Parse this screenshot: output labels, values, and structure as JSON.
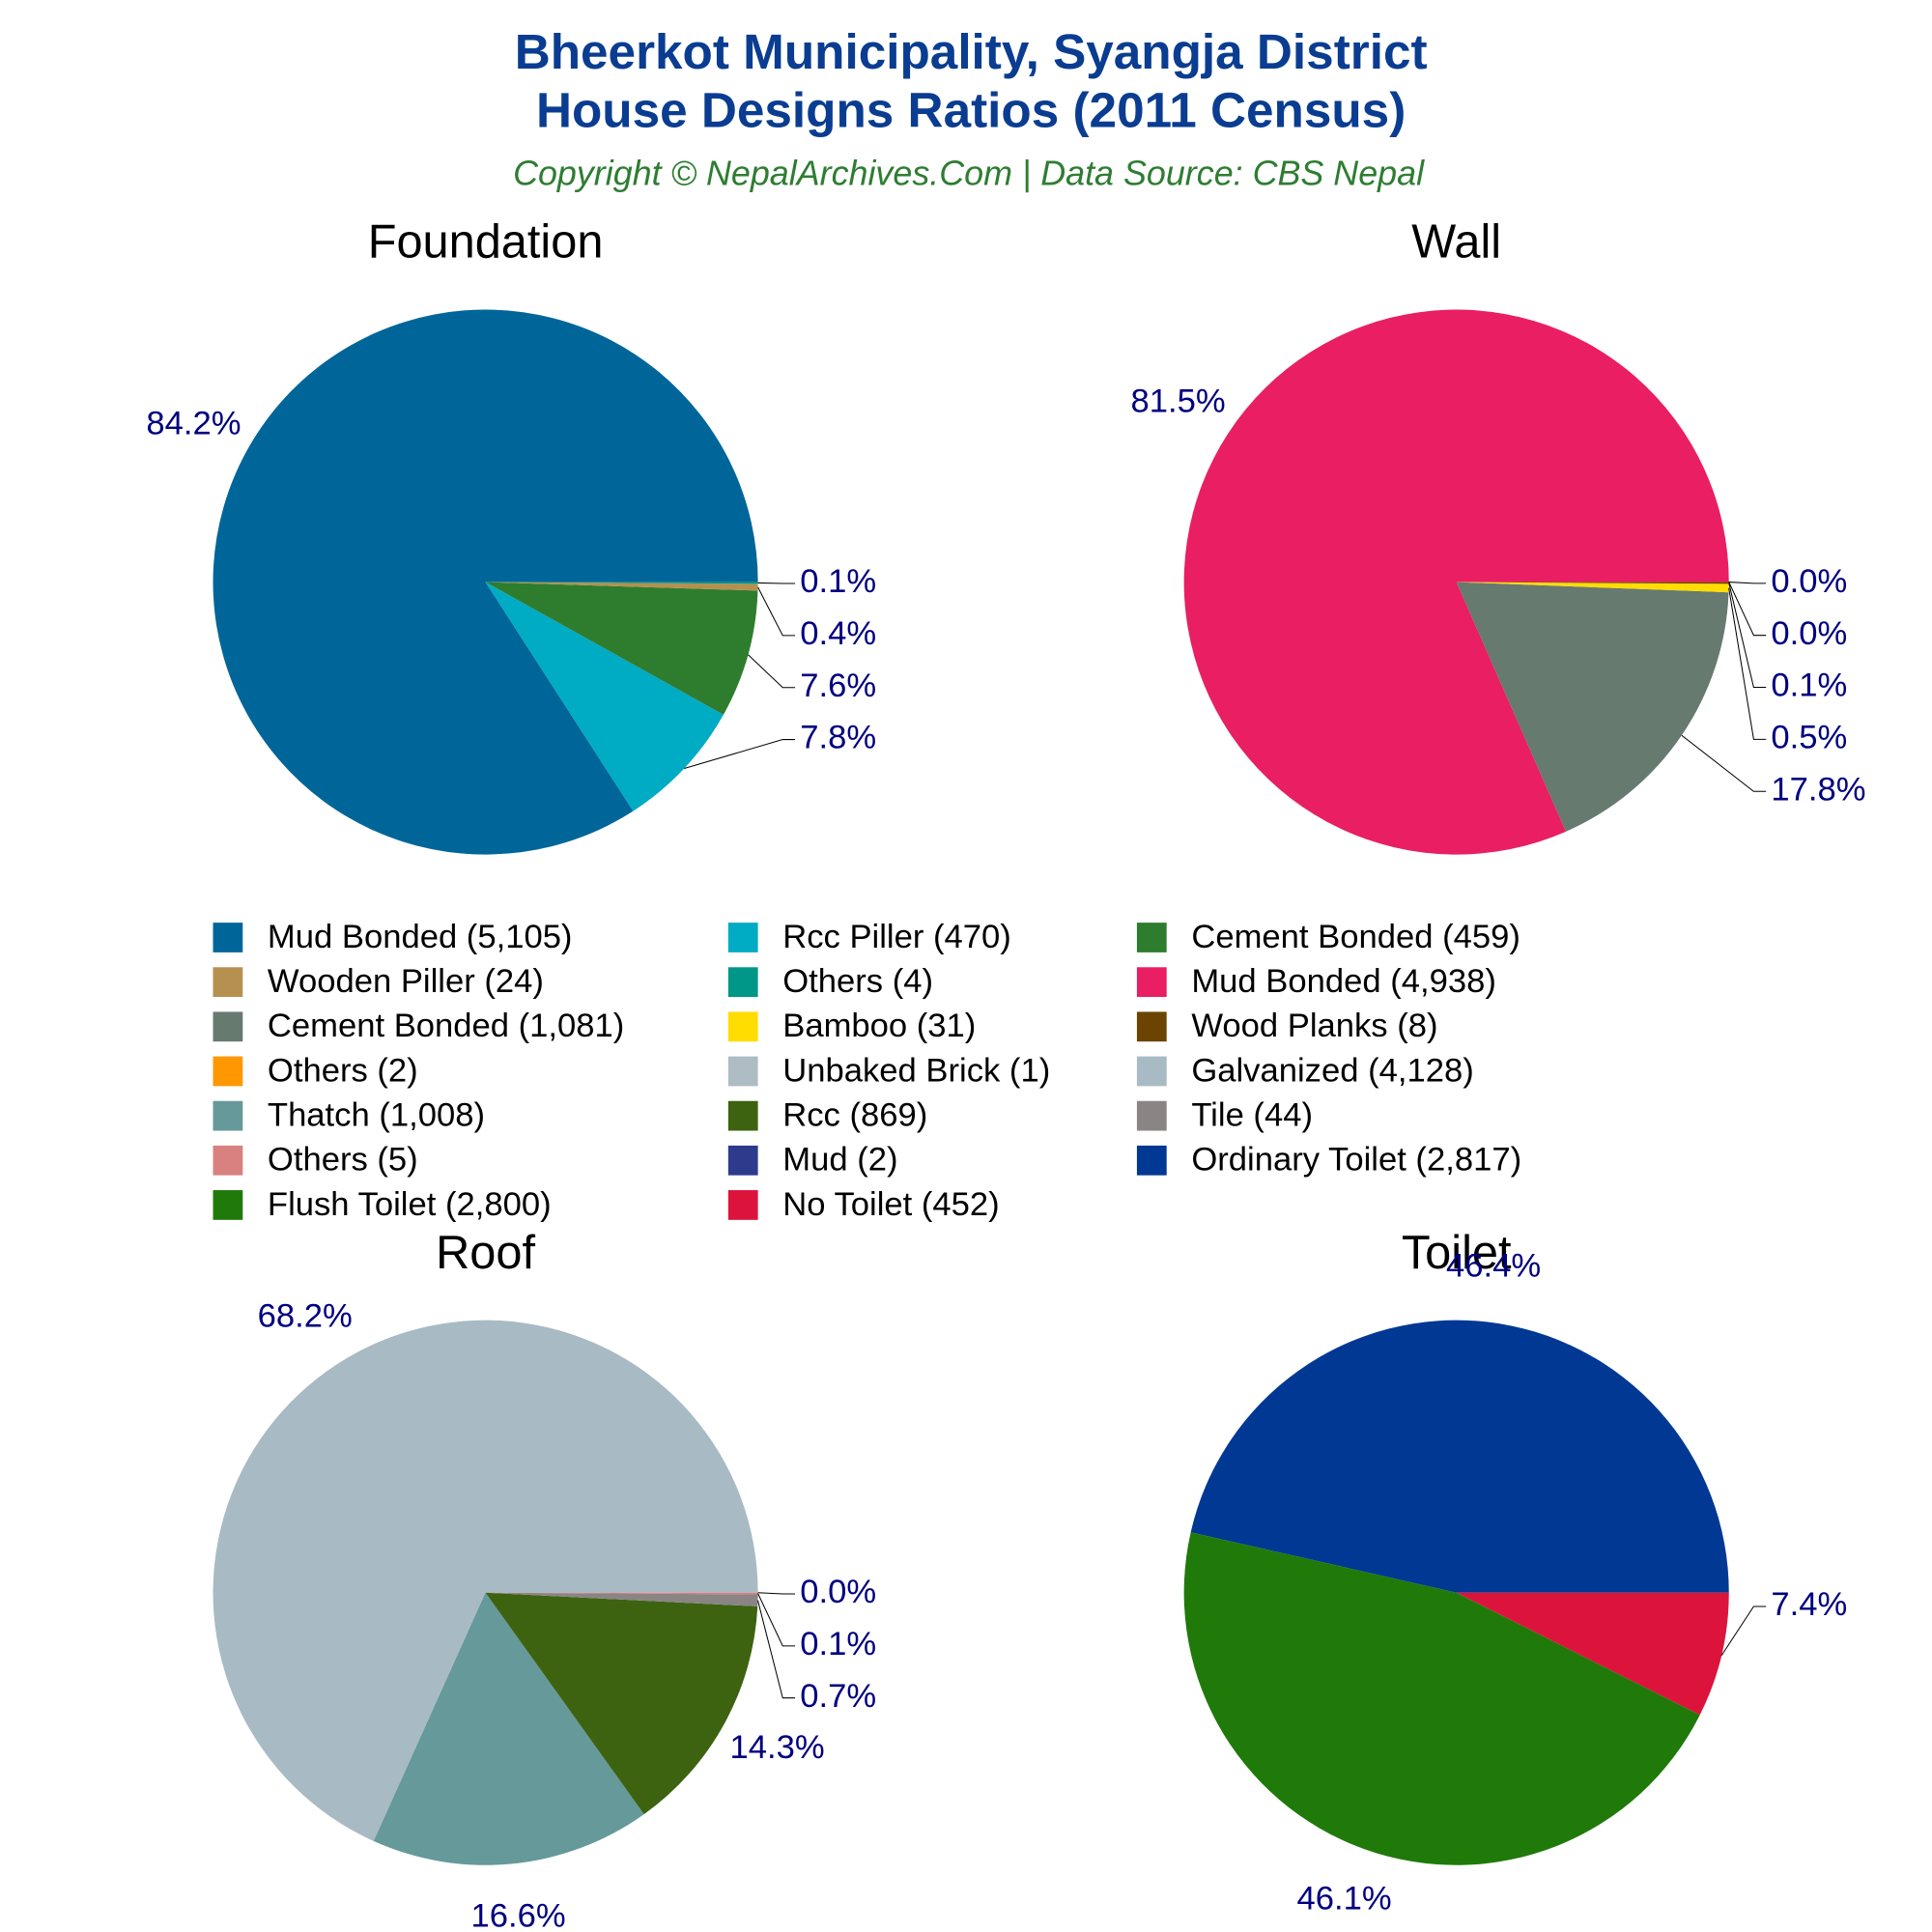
{
  "header": {
    "title": [
      "Bheerkot Municipality, Syangja District",
      "House Designs Ratios (2011 Census)"
    ],
    "subtitle": "Copyright © NepalArchives.Com | Data Source: CBS Nepal"
  },
  "chart_data": [
    {
      "type": "pie",
      "title": "Foundation",
      "categories": [
        "Mud Bonded (5,105)",
        "Rcc Piller (470)",
        "Cement Bonded (459)",
        "Wooden Piller (24)",
        "Others (4)"
      ],
      "values": [
        84.2,
        7.8,
        7.6,
        0.4,
        0.1
      ],
      "value_labels": [
        "84.2%",
        "7.8%",
        "7.6%",
        "0.4%",
        "0.1%"
      ],
      "colors": [
        "#006699",
        "#00abc4",
        "#2e7d2e",
        "#b5904f",
        "#009688"
      ]
    },
    {
      "type": "pie",
      "title": "Wall",
      "categories": [
        "Mud Bonded (4,938)",
        "Cement Bonded (1,081)",
        "Bamboo (31)",
        "Wood Planks (8)",
        "Others (2)",
        "Unbaked Brick (1)"
      ],
      "values": [
        81.5,
        17.8,
        0.5,
        0.1,
        0.0,
        0.0
      ],
      "value_labels": [
        "81.5%",
        "17.8%",
        "0.5%",
        "0.1%",
        "0.0%",
        "0.0%"
      ],
      "colors": [
        "#e91e63",
        "#667a70",
        "#ffdd00",
        "#6b4400",
        "#ff9800",
        "#aebcc4"
      ]
    },
    {
      "type": "pie",
      "title": "Roof",
      "categories": [
        "Galvanized (4,128)",
        "Thatch (1,008)",
        "Rcc (869)",
        "Tile (44)",
        "Others (5)",
        "Mud (2)"
      ],
      "values": [
        68.2,
        16.6,
        14.3,
        0.7,
        0.1,
        0.0
      ],
      "value_labels": [
        "68.2%",
        "16.6%",
        "14.3%",
        "0.7%",
        "0.1%",
        "0.0%"
      ],
      "colors": [
        "#a8bbc4",
        "#669999",
        "#3d6311",
        "#8a8584",
        "#d98080",
        "#2e3a8c"
      ]
    },
    {
      "type": "pie",
      "title": "Toilet",
      "categories": [
        "Ordinary Toilet (2,817)",
        "Flush Toilet (2,800)",
        "No Toilet (452)"
      ],
      "values": [
        46.4,
        46.1,
        7.4
      ],
      "value_labels": [
        "46.4%",
        "46.1%",
        "7.4%"
      ],
      "colors": [
        "#003893",
        "#1f7a0a",
        "#dc143c"
      ]
    }
  ]
}
